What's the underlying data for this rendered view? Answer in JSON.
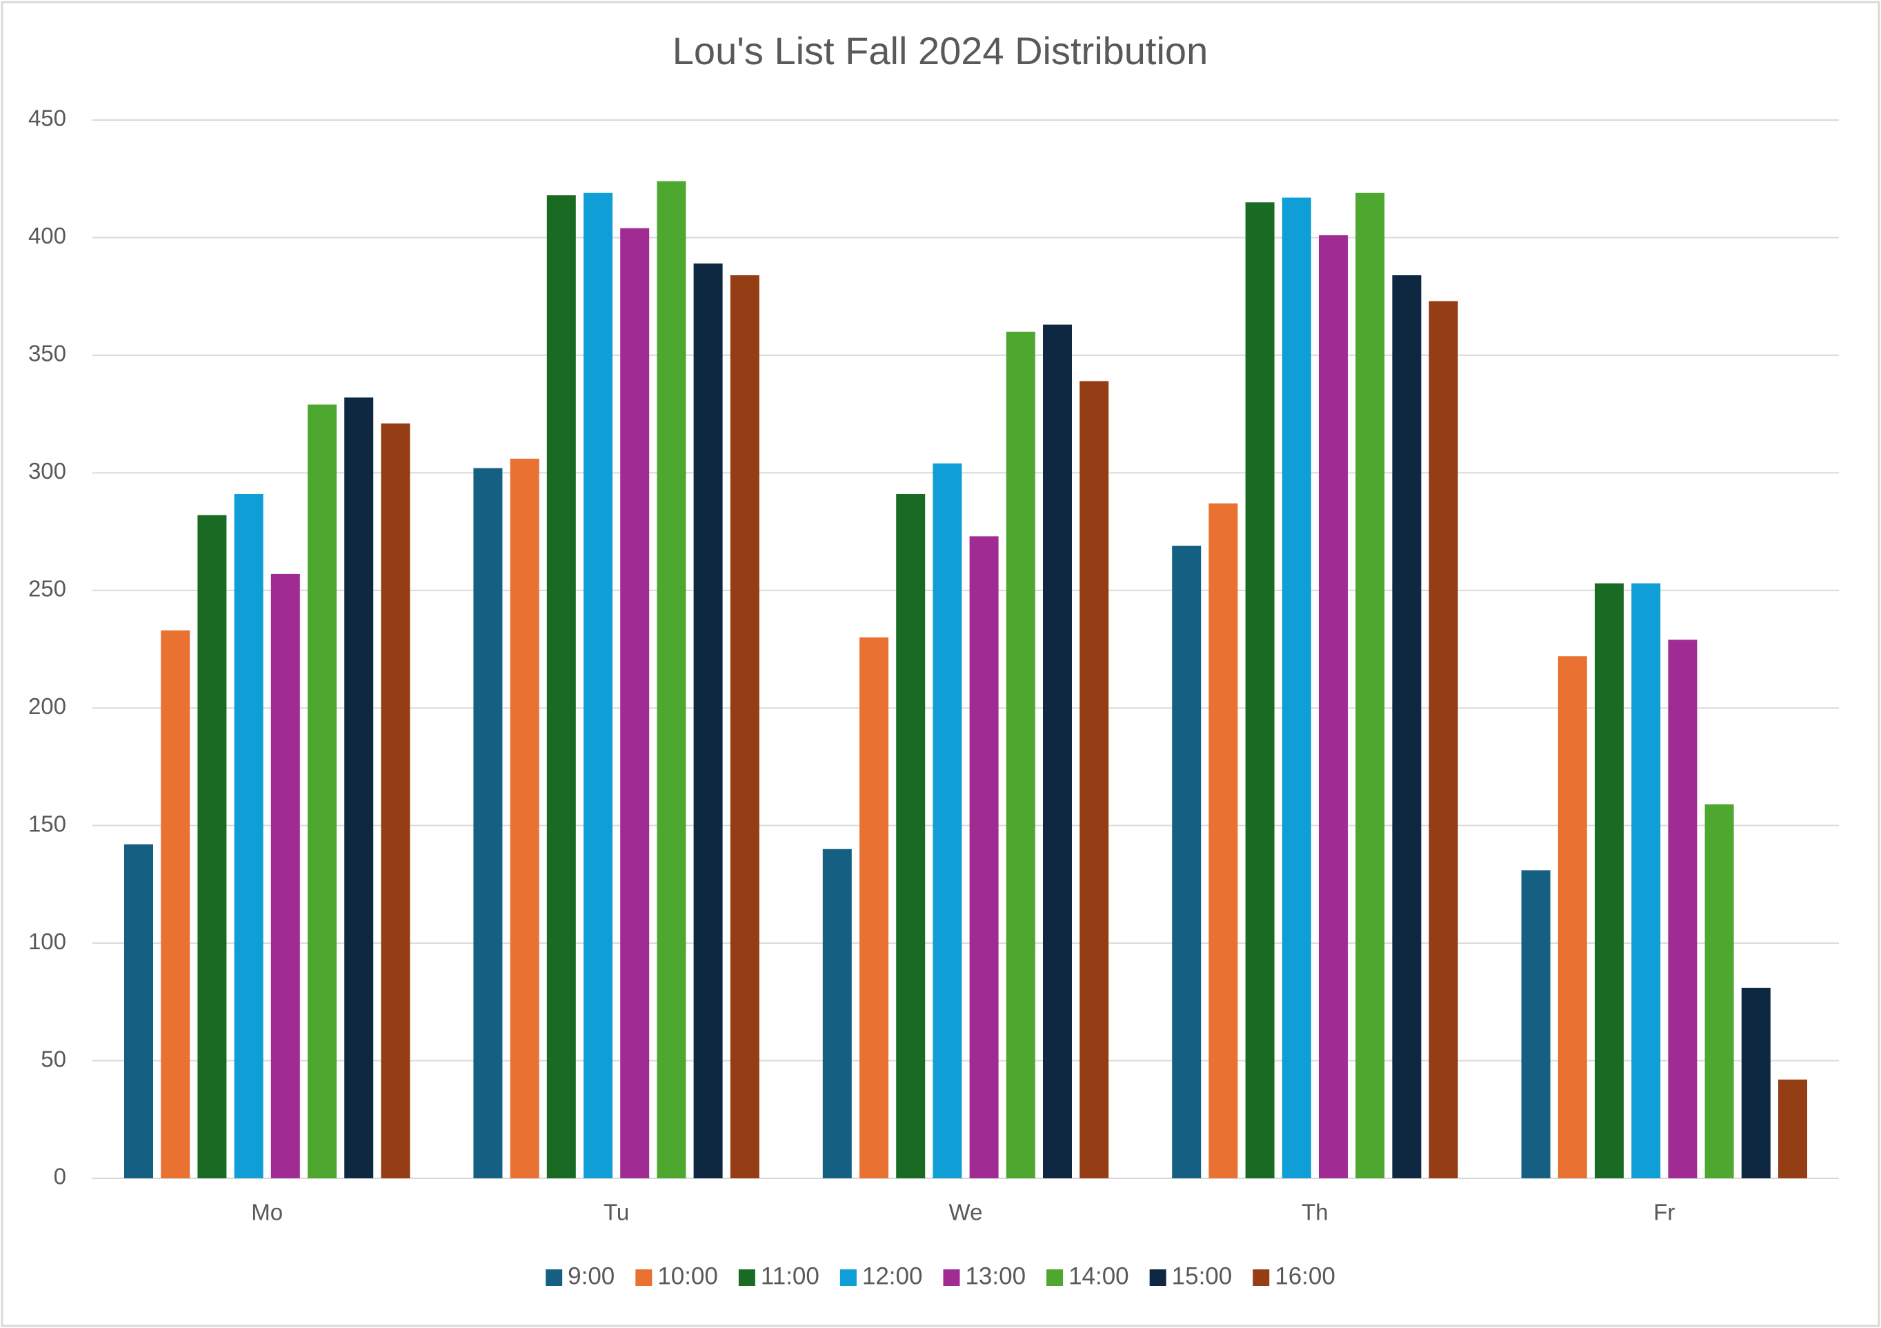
{
  "chart_data": {
    "type": "bar",
    "title": "Lou's List Fall 2024 Distribution",
    "categories": [
      "Mo",
      "Tu",
      "We",
      "Th",
      "Fr"
    ],
    "series": [
      {
        "name": "9:00",
        "color": "#156082",
        "values": [
          142,
          302,
          140,
          269,
          131
        ]
      },
      {
        "name": "10:00",
        "color": "#e97132",
        "values": [
          233,
          306,
          230,
          287,
          222
        ]
      },
      {
        "name": "11:00",
        "color": "#196b24",
        "values": [
          282,
          418,
          291,
          415,
          253
        ]
      },
      {
        "name": "12:00",
        "color": "#0f9ed5",
        "values": [
          291,
          419,
          304,
          417,
          253
        ]
      },
      {
        "name": "13:00",
        "color": "#a02b93",
        "values": [
          257,
          404,
          273,
          401,
          229
        ]
      },
      {
        "name": "14:00",
        "color": "#4ea72e",
        "values": [
          329,
          424,
          360,
          419,
          159
        ]
      },
      {
        "name": "15:00",
        "color": "#0e2841",
        "values": [
          332,
          389,
          363,
          384,
          81
        ]
      },
      {
        "name": "16:00",
        "color": "#953e15",
        "values": [
          321,
          384,
          339,
          373,
          42
        ]
      }
    ],
    "ylim": [
      0,
      450
    ],
    "yticks": [
      0,
      50,
      100,
      150,
      200,
      250,
      300,
      350,
      400,
      450
    ],
    "grid": true,
    "legend": "bottom"
  }
}
